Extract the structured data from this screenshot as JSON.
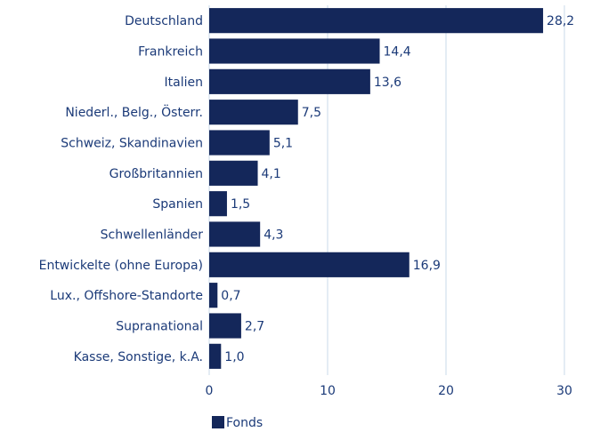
{
  "chart_data": {
    "type": "hbar",
    "categories": [
      "Deutschland",
      "Frankreich",
      "Italien",
      "Niederl., Belg., Österr.",
      "Schweiz, Skandinavien",
      "Großbritannien",
      "Spanien",
      "Schwellenländer",
      "Entwickelte (ohne Europa)",
      "Lux., Offshore-Standorte",
      "Supranational",
      "Kasse, Sonstige, k.A."
    ],
    "series": [
      {
        "name": "Fonds",
        "color": "#14275a",
        "values": [
          28.2,
          14.4,
          13.6,
          7.5,
          5.1,
          4.1,
          1.5,
          4.3,
          16.9,
          0.7,
          2.7,
          1.0
        ],
        "value_labels": [
          "28,2",
          "14,4",
          "13,6",
          "7,5",
          "5,1",
          "4,1",
          "1,5",
          "4,3",
          "16,9",
          "0,7",
          "2,7",
          "1,0"
        ]
      }
    ],
    "xlim": [
      0,
      30
    ],
    "xticks": [
      0,
      10,
      20,
      30
    ],
    "grid": true,
    "legend": "bottom-left"
  }
}
